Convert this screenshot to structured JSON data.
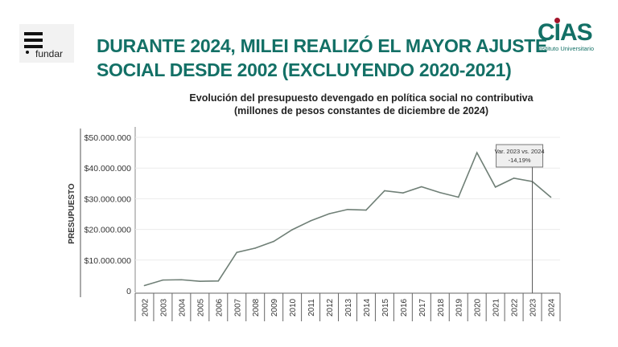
{
  "header": {
    "title_line1": "DURANTE 2024, MILEI REALIZÓ EL MAYOR AJUSTE",
    "title_line2": "SOCIAL DESDE 2002 (EXCLUYENDO 2020-2021)",
    "left_logo": "fundar",
    "right_logo": "CIAS",
    "right_logo_sub": "Instituto Universitario",
    "title_color": "#137066"
  },
  "chart_data": {
    "type": "line",
    "title": "Evolución del presupuesto devengado en política social no contributiva",
    "subtitle": "(millones de pesos constantes de diciembre de 2024)",
    "ylabel": "PRESUPUESTO",
    "xlabel": "",
    "ylim": [
      0,
      50000000
    ],
    "yticks": [
      0,
      10000000,
      20000000,
      30000000,
      40000000,
      50000000
    ],
    "ytick_labels": [
      "0",
      "$10.000.000",
      "$20.000.000",
      "$30.000.000",
      "$40.000.000",
      "$50.000.000"
    ],
    "grid": true,
    "categories": [
      "2002",
      "2003",
      "2004",
      "2005",
      "2006",
      "2007",
      "2008",
      "2009",
      "2010",
      "2011",
      "2012",
      "2013",
      "2014",
      "2015",
      "2016",
      "2017",
      "2018",
      "2019",
      "2020",
      "2021",
      "2022",
      "2023",
      "2024"
    ],
    "values": [
      1700000,
      3500000,
      3600000,
      3100000,
      3200000,
      12500000,
      13900000,
      16100000,
      19900000,
      22800000,
      25100000,
      26500000,
      26300000,
      32600000,
      31900000,
      33900000,
      32000000,
      30500000,
      45000000,
      33800000,
      36700000,
      35600000,
      30500000
    ],
    "line_color": "#6f7f76",
    "annotation": {
      "category": "2023",
      "line1": "Var. 2023 vs. 2024",
      "line2": "-14,19%"
    }
  }
}
